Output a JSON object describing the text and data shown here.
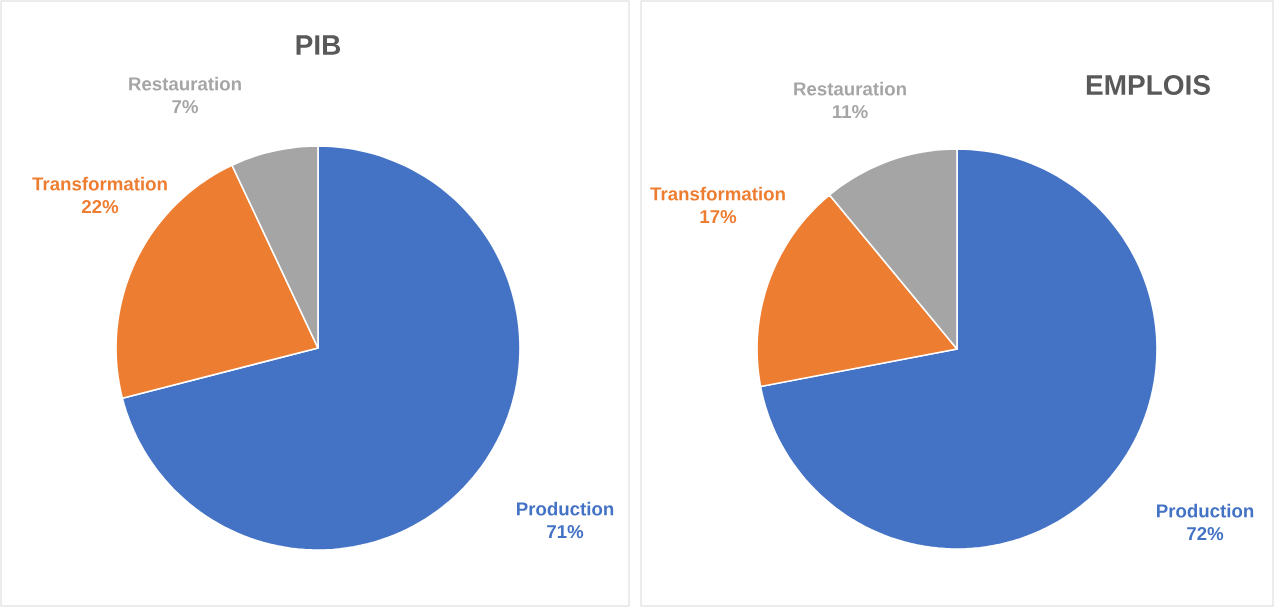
{
  "chart_data": [
    {
      "type": "pie",
      "title": "PIB",
      "categories": [
        "Production",
        "Transformation",
        "Restauration"
      ],
      "values": [
        71,
        22,
        7
      ],
      "colors": [
        "#4472c4",
        "#ed7d31",
        "#a5a5a5"
      ],
      "value_labels": [
        "71%",
        "22%",
        "7%"
      ]
    },
    {
      "type": "pie",
      "title": "EMPLOIS",
      "categories": [
        "Production",
        "Transformation",
        "Restauration"
      ],
      "values": [
        72,
        17,
        11
      ],
      "colors": [
        "#4472c4",
        "#ed7d31",
        "#a5a5a5"
      ],
      "value_labels": [
        "72%",
        "17%",
        "11%"
      ]
    }
  ]
}
